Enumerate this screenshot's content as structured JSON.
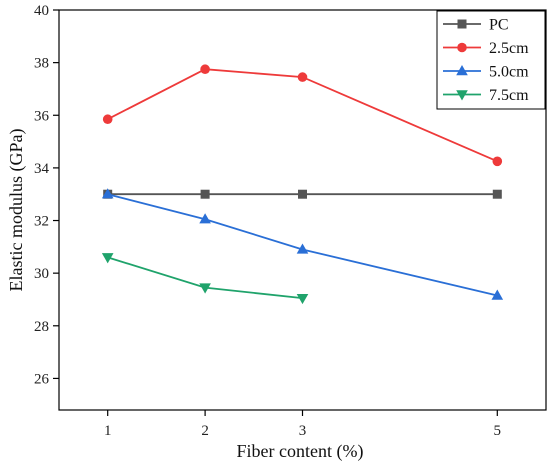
{
  "chart_data": {
    "type": "line",
    "xlabel": "Fiber content (%)",
    "ylabel": "Elastic modulus (GPa)",
    "x": [
      1,
      2,
      3,
      5
    ],
    "xticks": [
      "1",
      "2",
      "3",
      "5"
    ],
    "xlim": [
      0.5,
      5.5
    ],
    "ylim": [
      24.8,
      40
    ],
    "yticks": [
      26,
      28,
      30,
      32,
      34,
      36,
      38,
      40
    ],
    "grid": false,
    "legend_position": "top-right",
    "series": [
      {
        "name": "PC",
        "color": "#555555",
        "marker": "square",
        "x": [
          1,
          2,
          3,
          5
        ],
        "values": [
          33.0,
          33.0,
          33.0,
          33.0
        ]
      },
      {
        "name": "2.5cm",
        "color": "#ee3a3a",
        "marker": "circle",
        "x": [
          1,
          2,
          3,
          5
        ],
        "values": [
          35.85,
          37.75,
          37.45,
          34.25
        ]
      },
      {
        "name": "5.0cm",
        "color": "#2a6fd6",
        "marker": "triangle-up",
        "x": [
          1,
          2,
          3,
          5
        ],
        "values": [
          33.0,
          32.05,
          30.9,
          29.15
        ]
      },
      {
        "name": "7.5cm",
        "color": "#1fa36b",
        "marker": "triangle-down",
        "x": [
          1,
          2,
          3
        ],
        "values": [
          30.6,
          29.45,
          29.05
        ]
      }
    ]
  }
}
